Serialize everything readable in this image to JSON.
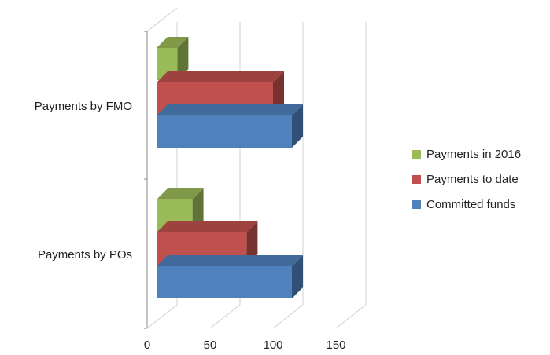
{
  "chart_data": {
    "type": "bar",
    "orientation": "horizontal",
    "style": "3d",
    "categories": [
      "Payments by FMO",
      "Payments by POs"
    ],
    "series": [
      {
        "name": "Payments in 2016",
        "color": "#9bbb59",
        "values": [
          24,
          36
        ]
      },
      {
        "name": "Payments to date",
        "color": "#c0504d",
        "values": [
          100,
          79
        ]
      },
      {
        "name": "Committed funds",
        "color": "#4f81bd",
        "values": [
          115,
          115
        ]
      }
    ],
    "xticks": [
      0,
      50,
      100,
      150
    ],
    "xlim": [
      0,
      150
    ],
    "grid": true,
    "legend": "right",
    "title": "",
    "xlabel": "",
    "ylabel": ""
  }
}
